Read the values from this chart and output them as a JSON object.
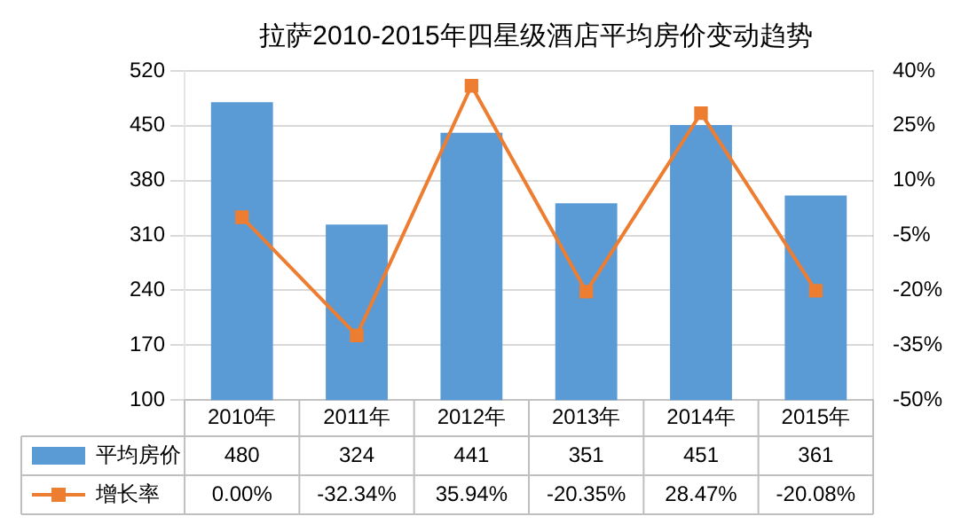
{
  "chart_data": {
    "type": "bar",
    "title": "拉萨2010-2015年四星级酒店平均房价变动趋势",
    "categories": [
      "2010年",
      "2011年",
      "2012年",
      "2013年",
      "2014年",
      "2015年"
    ],
    "series": [
      {
        "name": "平均房价",
        "color": "#5b9bd5",
        "values": [
          480,
          324,
          441,
          351,
          451,
          361
        ],
        "value_labels": [
          "480",
          "324",
          "441",
          "351",
          "451",
          "361"
        ]
      },
      {
        "name": "增长率",
        "type": "line",
        "axis": "y2",
        "color": "#ed7d31",
        "marker": "square",
        "values": [
          0.0,
          -32.34,
          35.94,
          -20.35,
          28.47,
          -20.08
        ],
        "value_labels": [
          "0.00%",
          "-32.34%",
          "35.94%",
          "-20.35%",
          "28.47%",
          "-20.08%"
        ]
      }
    ],
    "ylim": [
      100,
      520
    ],
    "yticks": [
      100,
      170,
      240,
      310,
      380,
      450,
      520
    ],
    "y2lim": [
      -50,
      40
    ],
    "y2ticks": [
      {
        "value": -50,
        "label": "-50%"
      },
      {
        "value": -35,
        "label": "-35%"
      },
      {
        "value": -20,
        "label": "-20%"
      },
      {
        "value": -5,
        "label": "-5%"
      },
      {
        "value": 10,
        "label": "10%"
      },
      {
        "value": 25,
        "label": "25%"
      },
      {
        "value": 40,
        "label": "40%"
      }
    ],
    "grid": "y",
    "legend": "bottom"
  }
}
